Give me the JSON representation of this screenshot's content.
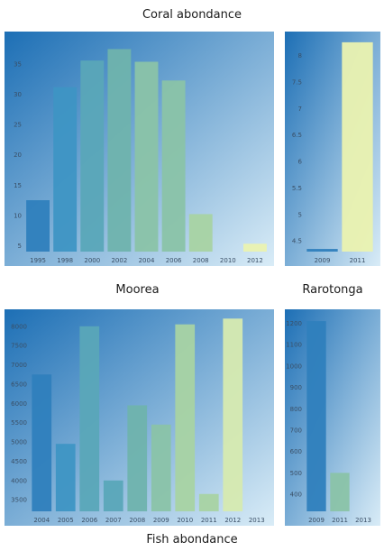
{
  "titles": {
    "top": "Coral abondance",
    "bottom": "Fish abondance"
  },
  "panel_labels": {
    "left": "Moorea",
    "right": "Rarotonga"
  },
  "chart_data": [
    {
      "id": "coral-moorea",
      "type": "bar",
      "categories": [
        "1995",
        "1998",
        "2000",
        "2002",
        "2004",
        "2006",
        "2008",
        "2010",
        "2012"
      ],
      "bars": [
        {
          "x": "1995",
          "value": 12.5
        },
        {
          "x": "1998",
          "value": 31.2
        },
        {
          "x": "2000",
          "value": 35.6
        },
        {
          "x": "2002",
          "value": 37.5
        },
        {
          "x": "2004",
          "value": 35.4
        },
        {
          "x": "2006",
          "value": 32.3
        },
        {
          "x": "2008",
          "value": 10.2
        },
        {
          "x": "2012",
          "value": 5.3
        }
      ],
      "yticks": [
        5,
        10,
        15,
        20,
        25,
        30,
        35
      ],
      "ylim": [
        4,
        39.5
      ]
    },
    {
      "id": "coral-rarotonga",
      "type": "bar",
      "categories": [
        "2009",
        "2011"
      ],
      "bars": [
        {
          "x": "2009",
          "value": 4.35
        },
        {
          "x": "2011",
          "value": 8.25
        }
      ],
      "yticks": [
        4.5,
        5,
        5.5,
        6,
        6.5,
        7,
        7.5,
        8
      ],
      "ylim": [
        4.3,
        8.35
      ]
    },
    {
      "id": "fish-moorea",
      "type": "bar",
      "categories": [
        "2004",
        "2005",
        "2006",
        "2007",
        "2008",
        "2009",
        "2010",
        "2011",
        "2012",
        "2013"
      ],
      "bars": [
        {
          "x": "2004",
          "value": 6750
        },
        {
          "x": "2005",
          "value": 4950
        },
        {
          "x": "2006",
          "value": 8000
        },
        {
          "x": "2007",
          "value": 4000
        },
        {
          "x": "2008",
          "value": 5950
        },
        {
          "x": "2009",
          "value": 5450
        },
        {
          "x": "2010",
          "value": 8050
        },
        {
          "x": "2011",
          "value": 3650
        },
        {
          "x": "2012",
          "value": 8200
        }
      ],
      "yticks": [
        3500,
        4000,
        4500,
        5000,
        5500,
        6000,
        6500,
        7000,
        7500,
        8000
      ],
      "ylim": [
        3200,
        8300
      ]
    },
    {
      "id": "fish-rarotonga",
      "type": "bar",
      "categories": [
        "2009",
        "2011",
        "2013"
      ],
      "bars": [
        {
          "x": "2009",
          "value": 1210
        },
        {
          "x": "2011",
          "value": 500
        }
      ],
      "yticks": [
        400,
        500,
        600,
        700,
        800,
        900,
        1000,
        1100,
        1200
      ],
      "ylim": [
        320,
        1240
      ]
    }
  ],
  "colors": {
    "bar_palette": [
      "#2f7fbd",
      "#3e95c4",
      "#5aa6b8",
      "#6fb3ad",
      "#8ac3a8",
      "#a8d3a3",
      "#d6eab0",
      "#eaf2b0"
    ],
    "background_top": "#1d6fb5",
    "background_bottom": "#d9ecf7"
  }
}
